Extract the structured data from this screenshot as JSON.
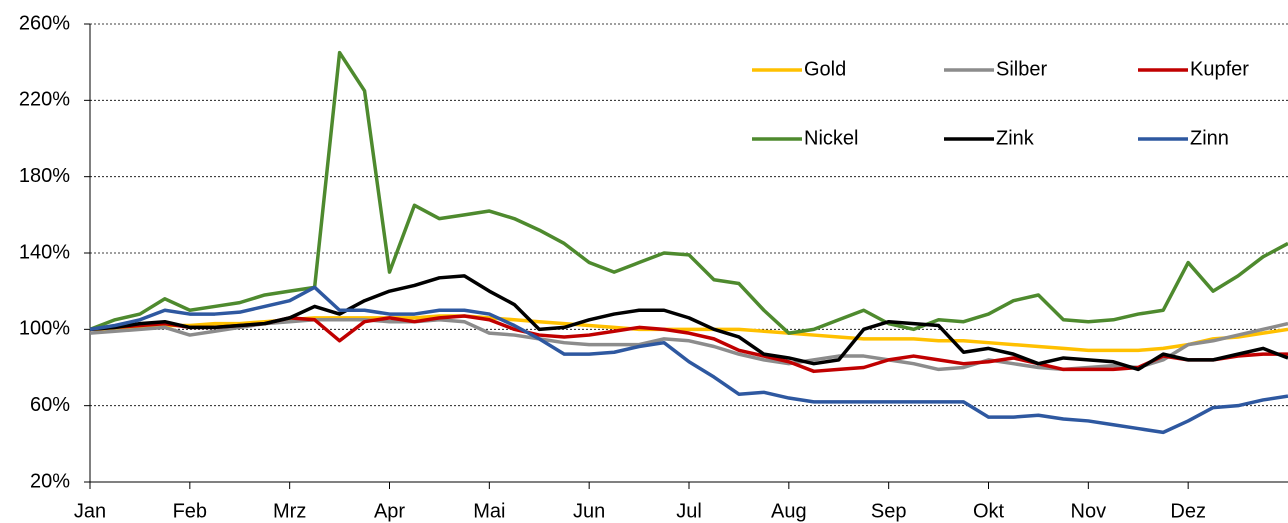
{
  "chart_data": {
    "type": "line",
    "categories": [
      "Jan",
      null,
      null,
      null,
      "Feb",
      null,
      null,
      null,
      "Mrz",
      null,
      null,
      null,
      "Apr",
      null,
      null,
      null,
      "Mai",
      null,
      null,
      null,
      "Jun",
      null,
      null,
      null,
      "Jul",
      null,
      null,
      null,
      "Aug",
      null,
      null,
      null,
      "Sep",
      null,
      null,
      null,
      "Okt",
      null,
      null,
      null,
      "Nov",
      null,
      null,
      null,
      "Dez",
      null,
      null,
      null,
      null
    ],
    "ylim": [
      20,
      260
    ],
    "yticks": [
      {
        "value": 20,
        "label": "20%"
      },
      {
        "value": 60,
        "label": "60%"
      },
      {
        "value": 100,
        "label": "100%"
      },
      {
        "value": 140,
        "label": "140%"
      },
      {
        "value": 180,
        "label": "180%"
      },
      {
        "value": 220,
        "label": "220%"
      },
      {
        "value": 260,
        "label": "260%"
      }
    ],
    "grid": true,
    "legend": "upper right",
    "series": [
      {
        "name": "Gold",
        "color": "#ffc000",
        "values": [
          100,
          100,
          101,
          102,
          102,
          103,
          103,
          104,
          105,
          106,
          106,
          106,
          106,
          106,
          107,
          107,
          106,
          105,
          104,
          103,
          102,
          101,
          100,
          100,
          100,
          100,
          100,
          99,
          98,
          97,
          96,
          95,
          95,
          95,
          94,
          94,
          93,
          92,
          91,
          90,
          89,
          89,
          89,
          90,
          92,
          95,
          96,
          98,
          100
        ]
      },
      {
        "name": "Silber",
        "color": "#8c8c8c",
        "values": [
          98,
          99,
          100,
          101,
          97,
          99,
          101,
          103,
          104,
          105,
          105,
          105,
          104,
          104,
          105,
          104,
          98,
          97,
          95,
          93,
          92,
          92,
          92,
          95,
          94,
          91,
          87,
          84,
          82,
          84,
          86,
          86,
          84,
          82,
          79,
          80,
          84,
          82,
          80,
          79,
          80,
          81,
          80,
          84,
          92,
          94,
          97,
          100,
          103
        ]
      },
      {
        "name": "Kupfer",
        "color": "#c00000",
        "values": [
          100,
          101,
          102,
          103,
          101,
          101,
          102,
          103,
          106,
          105,
          94,
          104,
          106,
          104,
          106,
          107,
          105,
          100,
          97,
          96,
          97,
          99,
          101,
          100,
          98,
          95,
          89,
          86,
          83,
          78,
          79,
          80,
          84,
          86,
          84,
          82,
          83,
          85,
          82,
          79,
          79,
          79,
          80,
          86,
          84,
          84,
          86,
          87,
          87
        ]
      },
      {
        "name": "Nickel",
        "color": "#4e8a2e",
        "values": [
          100,
          105,
          108,
          116,
          110,
          112,
          114,
          118,
          120,
          122,
          245,
          225,
          130,
          165,
          158,
          160,
          162,
          158,
          152,
          145,
          135,
          130,
          135,
          140,
          139,
          126,
          124,
          110,
          98,
          100,
          105,
          110,
          103,
          100,
          105,
          104,
          108,
          115,
          118,
          105,
          104,
          105,
          108,
          110,
          135,
          120,
          128,
          138,
          145
        ]
      },
      {
        "name": "Zink",
        "color": "#000000",
        "values": [
          100,
          101,
          103,
          104,
          101,
          101,
          102,
          103,
          106,
          112,
          108,
          115,
          120,
          123,
          127,
          128,
          120,
          113,
          100,
          101,
          105,
          108,
          110,
          110,
          106,
          100,
          96,
          87,
          85,
          82,
          84,
          100,
          104,
          103,
          102,
          88,
          90,
          87,
          82,
          85,
          84,
          83,
          79,
          87,
          84,
          84,
          87,
          90,
          85
        ]
      },
      {
        "name": "Zinn",
        "color": "#2e58a0",
        "values": [
          100,
          102,
          105,
          110,
          108,
          108,
          109,
          112,
          115,
          122,
          110,
          110,
          108,
          108,
          110,
          110,
          108,
          102,
          95,
          87,
          87,
          88,
          91,
          93,
          83,
          75,
          66,
          67,
          64,
          62,
          62,
          62,
          62,
          62,
          62,
          62,
          54,
          54,
          55,
          53,
          52,
          50,
          48,
          46,
          52,
          59,
          60,
          63,
          65
        ]
      }
    ]
  }
}
